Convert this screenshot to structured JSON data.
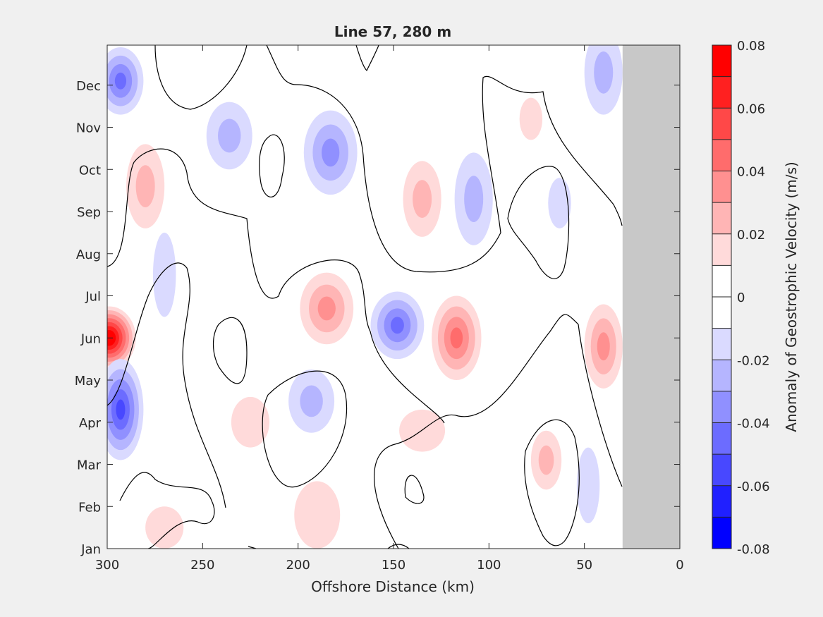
{
  "chart_data": {
    "type": "heatmap",
    "subtype": "filled-contour",
    "title": "Line 57, 280 m",
    "xlabel": "Offshore Distance (km)",
    "ylabel": "",
    "colorbar_label": "Anomaly of Geostrophic Velocity (m/s)",
    "xlim": [
      300,
      0
    ],
    "x_direction": "reversed",
    "x_ticks": [
      300,
      250,
      200,
      150,
      100,
      50,
      0
    ],
    "y_ticks": [
      "Jan",
      "Feb",
      "Mar",
      "Apr",
      "May",
      "Jun",
      "Jul",
      "Aug",
      "Sep",
      "Oct",
      "Nov",
      "Dec"
    ],
    "y_month_index": [
      0,
      1,
      2,
      3,
      4,
      5,
      6,
      7,
      8,
      9,
      10,
      11
    ],
    "ylim_months": [
      0,
      11.95
    ],
    "no_data_region_km": [
      30,
      0
    ],
    "colorbar_ticks": [
      0.08,
      0.06,
      0.04,
      0.02,
      0,
      -0.02,
      -0.04,
      -0.06,
      -0.08
    ],
    "colorbar_tick_labels": [
      "0.08",
      "0.06",
      "0.04",
      "0.02",
      "0",
      "-0.02",
      "-0.04",
      "-0.06",
      "-0.08"
    ],
    "colorbar_levels": [
      0.075,
      0.065,
      0.055,
      0.045,
      0.035,
      0.025,
      0.015,
      0.005,
      -0.005,
      -0.015,
      -0.025,
      -0.035,
      -0.045,
      -0.055,
      -0.065,
      -0.075
    ],
    "colorbar_colors": [
      "#ff0000",
      "#ff2020",
      "#ff4848",
      "#ff6c6c",
      "#ff9090",
      "#ffb5b5",
      "#ffdada",
      "#ffffff",
      "#ffffff",
      "#dadaff",
      "#b5b5ff",
      "#9090ff",
      "#6c6cff",
      "#4848ff",
      "#2020ff",
      "#0000ff"
    ],
    "anomaly_blobs": [
      {
        "km": 299,
        "month": 5.0,
        "rkm": 14,
        "rmo": 0.75,
        "value": 0.08
      },
      {
        "km": 293,
        "month": 3.3,
        "rkm": 12,
        "rmo": 1.2,
        "value": -0.05
      },
      {
        "km": 293,
        "month": 11.1,
        "rkm": 12,
        "rmo": 0.8,
        "value": -0.04
      },
      {
        "km": 280,
        "month": 8.6,
        "rkm": 10,
        "rmo": 1.0,
        "value": 0.03
      },
      {
        "km": 270,
        "month": 6.5,
        "rkm": 6,
        "rmo": 1.0,
        "value": -0.01
      },
      {
        "km": 270,
        "month": 0.5,
        "rkm": 10,
        "rmo": 0.5,
        "value": 0.015
      },
      {
        "km": 236,
        "month": 9.8,
        "rkm": 12,
        "rmo": 0.8,
        "value": -0.03
      },
      {
        "km": 225,
        "month": 3.0,
        "rkm": 10,
        "rmo": 0.6,
        "value": 0.015
      },
      {
        "km": 193,
        "month": 3.5,
        "rkm": 12,
        "rmo": 0.75,
        "value": -0.03
      },
      {
        "km": 185,
        "month": 5.7,
        "rkm": 14,
        "rmo": 0.85,
        "value": 0.035
      },
      {
        "km": 183,
        "month": 9.4,
        "rkm": 14,
        "rmo": 1.0,
        "value": -0.035
      },
      {
        "km": 190,
        "month": 0.8,
        "rkm": 12,
        "rmo": 0.8,
        "value": 0.015
      },
      {
        "km": 148,
        "month": 5.3,
        "rkm": 14,
        "rmo": 0.8,
        "value": -0.045
      },
      {
        "km": 135,
        "month": 8.3,
        "rkm": 10,
        "rmo": 0.9,
        "value": 0.02
      },
      {
        "km": 135,
        "month": 2.8,
        "rkm": 12,
        "rmo": 0.5,
        "value": 0.015
      },
      {
        "km": 117,
        "month": 5.0,
        "rkm": 13,
        "rmo": 1.0,
        "value": 0.045
      },
      {
        "km": 108,
        "month": 8.3,
        "rkm": 10,
        "rmo": 1.1,
        "value": -0.02
      },
      {
        "km": 70,
        "month": 2.1,
        "rkm": 8,
        "rmo": 0.7,
        "value": 0.02
      },
      {
        "km": 63,
        "month": 8.2,
        "rkm": 6,
        "rmo": 0.6,
        "value": -0.015
      },
      {
        "km": 78,
        "month": 10.2,
        "rkm": 6,
        "rmo": 0.5,
        "value": 0.012
      },
      {
        "km": 40,
        "month": 4.8,
        "rkm": 10,
        "rmo": 1.0,
        "value": 0.035
      },
      {
        "km": 40,
        "month": 11.3,
        "rkm": 10,
        "rmo": 1.0,
        "value": -0.03
      },
      {
        "km": 48,
        "month": 1.5,
        "rkm": 6,
        "rmo": 0.9,
        "value": -0.012
      }
    ]
  }
}
